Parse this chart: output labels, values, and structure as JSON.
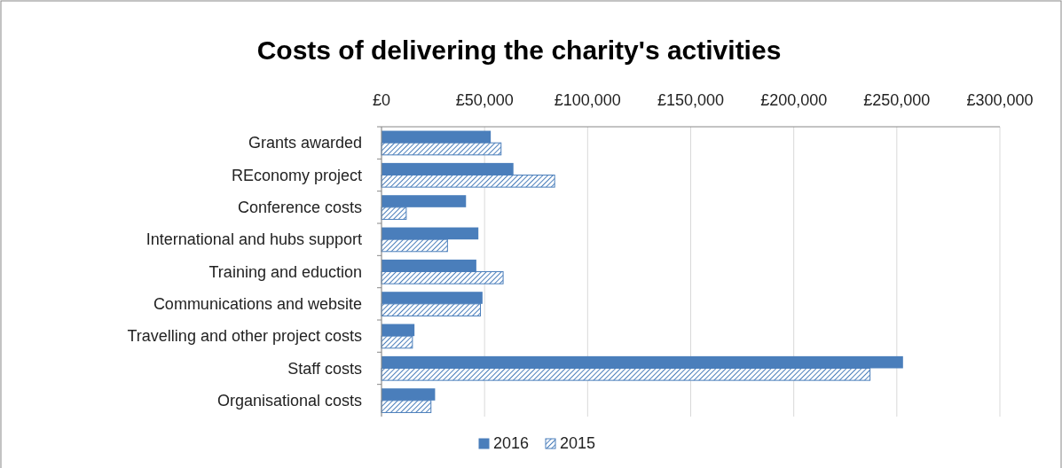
{
  "chart_data": {
    "type": "bar",
    "title": "Costs of delivering the charity's activities",
    "orientation": "horizontal",
    "categories": [
      "Grants awarded",
      "REconomy project",
      "Conference costs",
      "International and hubs support",
      "Training and eduction",
      "Communications and website",
      "Travelling and other project costs",
      "Staff costs",
      "Organisational costs"
    ],
    "series": [
      {
        "name": "2016",
        "color": "#4a7ebb",
        "values": [
          53000,
          64000,
          41000,
          47000,
          46000,
          49000,
          16000,
          253000,
          26000
        ]
      },
      {
        "name": "2015",
        "color": "#4a7ebb",
        "values": [
          58000,
          84000,
          12000,
          32000,
          59000,
          48000,
          15000,
          237000,
          24000
        ]
      }
    ],
    "xlim": [
      0,
      300000
    ],
    "xticks": [
      {
        "value": 0,
        "label": "£0"
      },
      {
        "value": 50000,
        "label": "£50,000"
      },
      {
        "value": 100000,
        "label": "£100,000"
      },
      {
        "value": 150000,
        "label": "£150,000"
      },
      {
        "value": 200000,
        "label": "£200,000"
      },
      {
        "value": 250000,
        "label": "£250,000"
      },
      {
        "value": 300000,
        "label": "£300,000"
      }
    ],
    "grid": "x",
    "legend": "bottom"
  }
}
